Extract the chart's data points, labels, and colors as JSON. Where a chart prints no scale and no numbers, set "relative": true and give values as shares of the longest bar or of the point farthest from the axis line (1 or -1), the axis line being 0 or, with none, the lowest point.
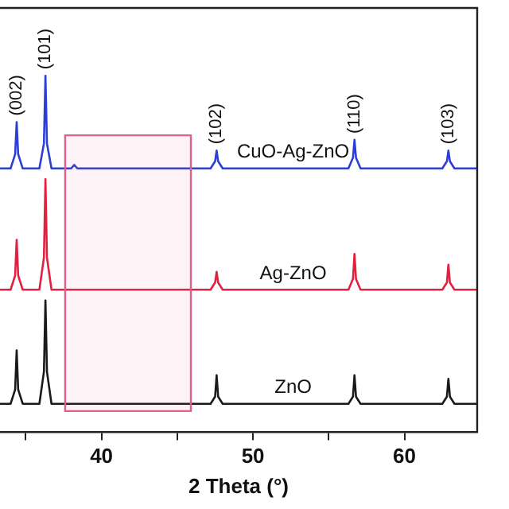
{
  "chart_data": {
    "type": "line",
    "relative": true,
    "xlabel": "2 Theta (°)",
    "xlim": [
      33.3,
      64.8
    ],
    "xticks": [
      {
        "value": 35,
        "label": null
      },
      40,
      {
        "value": 45,
        "label": null
      },
      50,
      {
        "value": 55,
        "label": null
      },
      60
    ],
    "tick_labels": "x",
    "grid": false,
    "legend": false,
    "marker": "none",
    "line_style": "solid",
    "series": [
      {
        "name": "CuO-Ag-ZnO",
        "color": "#2b3fd6",
        "x": [
          33.3,
          34.0,
          34.3,
          34.4,
          34.5,
          34.8,
          35.9,
          36.2,
          36.3,
          36.4,
          36.7,
          38.0,
          38.2,
          38.4,
          47.2,
          47.5,
          47.6,
          47.7,
          48.0,
          56.3,
          56.6,
          56.7,
          56.8,
          57.1,
          62.5,
          62.8,
          62.9,
          63.0,
          63.3,
          64.8
        ],
        "values": [
          0.74,
          0.74,
          0.78,
          0.87,
          0.78,
          0.74,
          0.74,
          0.81,
          1.0,
          0.81,
          0.74,
          0.74,
          0.75,
          0.74,
          0.74,
          0.76,
          0.79,
          0.76,
          0.74,
          0.74,
          0.77,
          0.82,
          0.77,
          0.74,
          0.74,
          0.76,
          0.79,
          0.76,
          0.74,
          0.74
        ]
      },
      {
        "name": "Ag-ZnO",
        "color": "#e0213f",
        "x": [
          33.3,
          34.0,
          34.3,
          34.4,
          34.5,
          34.8,
          35.9,
          36.2,
          36.3,
          36.4,
          36.7,
          47.2,
          47.5,
          47.6,
          47.7,
          48.0,
          56.3,
          56.6,
          56.7,
          56.8,
          57.1,
          62.5,
          62.8,
          62.9,
          63.0,
          63.3,
          64.8
        ],
        "values": [
          0.4,
          0.4,
          0.44,
          0.54,
          0.44,
          0.4,
          0.4,
          0.49,
          0.71,
          0.49,
          0.4,
          0.4,
          0.42,
          0.45,
          0.42,
          0.4,
          0.4,
          0.43,
          0.5,
          0.43,
          0.4,
          0.4,
          0.42,
          0.47,
          0.42,
          0.4,
          0.4
        ]
      },
      {
        "name": "ZnO",
        "color": "#1a1a1a",
        "x": [
          33.3,
          34.0,
          34.3,
          34.4,
          34.5,
          34.8,
          35.9,
          36.2,
          36.3,
          36.4,
          36.7,
          47.2,
          47.5,
          47.6,
          47.7,
          48.0,
          56.3,
          56.6,
          56.7,
          56.8,
          57.1,
          62.5,
          62.8,
          62.9,
          63.0,
          63.3,
          64.8
        ],
        "values": [
          0.08,
          0.08,
          0.12,
          0.23,
          0.12,
          0.08,
          0.08,
          0.17,
          0.37,
          0.17,
          0.08,
          0.08,
          0.1,
          0.16,
          0.1,
          0.08,
          0.08,
          0.1,
          0.16,
          0.1,
          0.08,
          0.08,
          0.1,
          0.15,
          0.1,
          0.08,
          0.08
        ]
      }
    ],
    "annotations": [
      {
        "text": "(002)",
        "x": 34.4,
        "y": 0.87
      },
      {
        "text": "(101)",
        "x": 36.3,
        "y": 1.0
      },
      {
        "text": "(102)",
        "x": 47.6,
        "y": 0.79
      },
      {
        "text": "(110)",
        "x": 56.7,
        "y": 0.82
      },
      {
        "text": "(103)",
        "x": 62.9,
        "y": 0.79
      }
    ],
    "bands": [
      {
        "axis": "x",
        "from": 37.6,
        "to": 45.9,
        "color": "#e0608a"
      }
    ]
  }
}
